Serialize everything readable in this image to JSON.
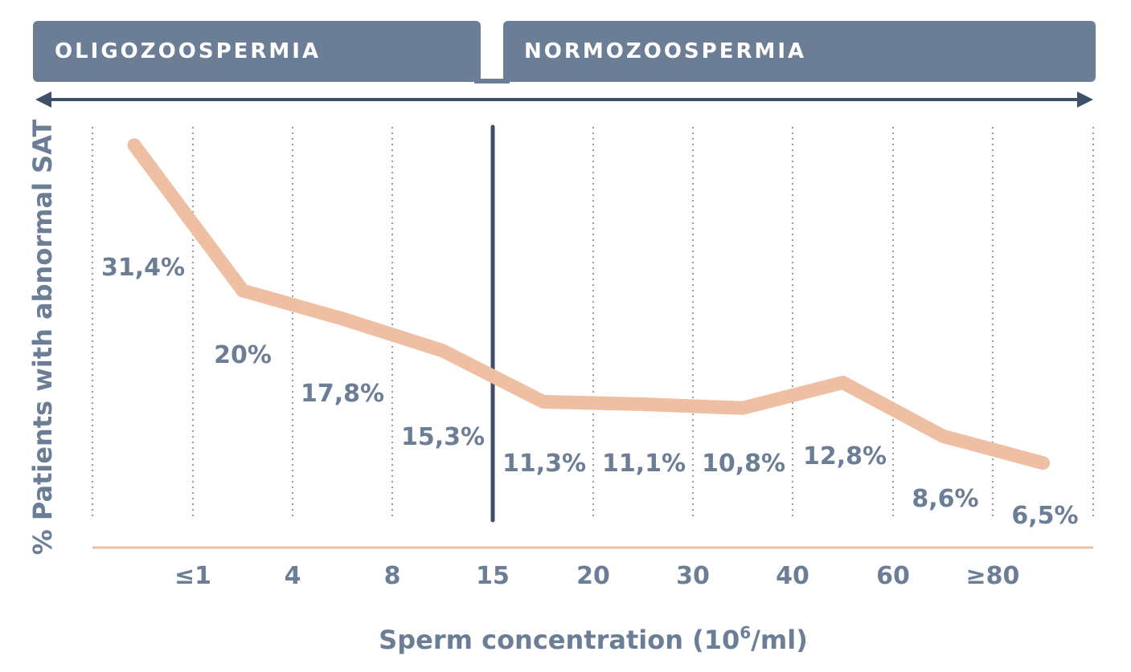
{
  "bands": [
    {
      "label": "OLIGOZOOSPERMIA"
    },
    {
      "label": "NORMOZOOSPERMIA"
    }
  ],
  "colors": {
    "band": "#6c7d96",
    "arrow": "#3f4f66",
    "line": "#efbfa4",
    "text": "#6c7d96",
    "grid": "#8e9bb0",
    "threshold": "#3f4f66",
    "baseline": "#efbfa4"
  },
  "chart_data": {
    "type": "line",
    "xlabel_main": "Sperm concentration (10",
    "xlabel_sup": "6",
    "xlabel_end": "/ml)",
    "ylabel": "% Patients with abnormal SAT",
    "tick_labels": [
      "≤1",
      "4",
      "8",
      "15",
      "20",
      "30",
      "40",
      "60",
      "≥80"
    ],
    "threshold_tick": "15",
    "categories": [
      "≤1",
      "1–4",
      "4–8",
      "8–15",
      "15–20",
      "20–30",
      "30–40",
      "40–60",
      "60–80",
      "≥80"
    ],
    "values": [
      31.4,
      20,
      17.8,
      15.3,
      11.3,
      11.1,
      10.8,
      12.8,
      8.6,
      6.5
    ],
    "value_labels": [
      "31,4%",
      "20%",
      "17,8%",
      "15,3%",
      "11,3%",
      "11,1%",
      "10,8%",
      "12,8%",
      "8,6%",
      "6,5%"
    ],
    "grid": "dotted vertical"
  }
}
